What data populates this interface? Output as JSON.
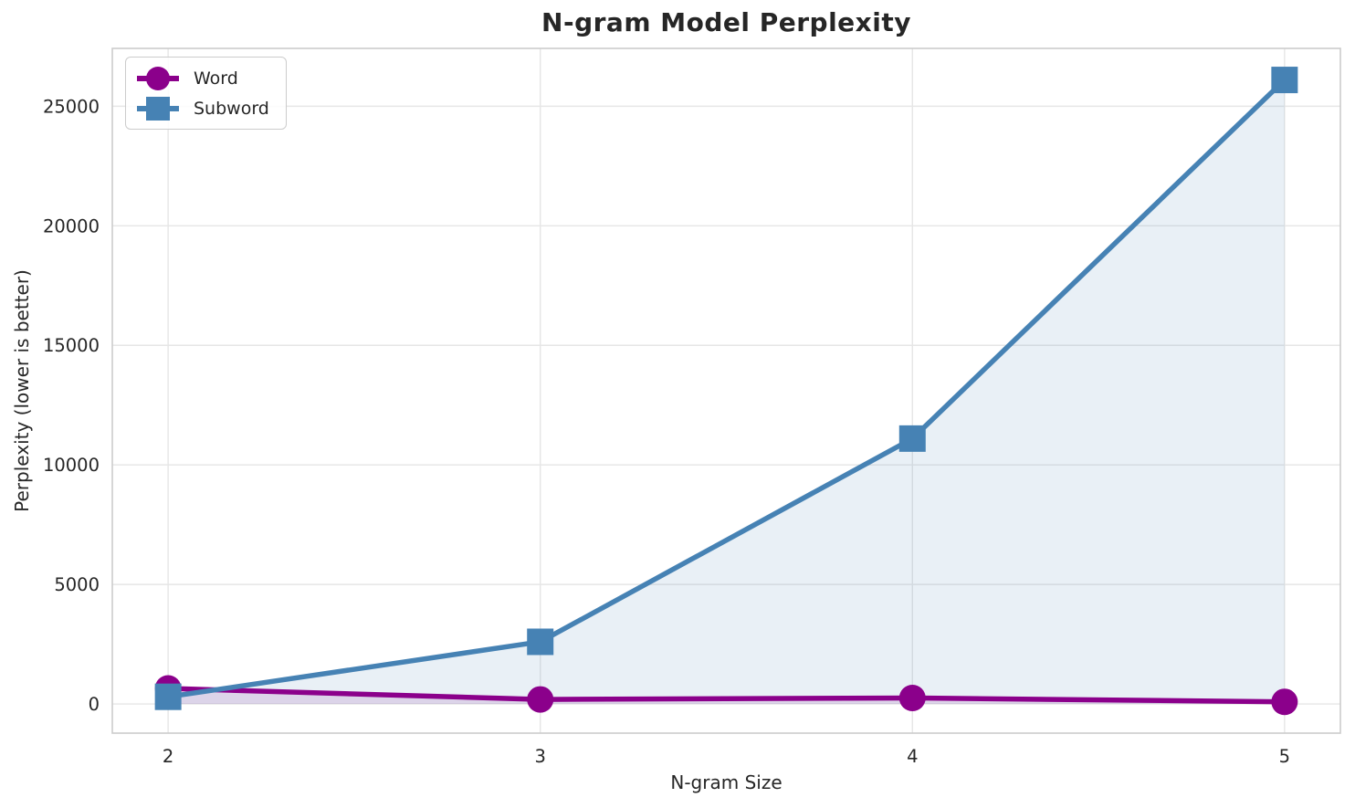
{
  "chart_data": {
    "type": "line",
    "title": "N-gram Model Perplexity",
    "xlabel": "N-gram Size",
    "ylabel": "Perplexity (lower is better)",
    "x": [
      2,
      3,
      4,
      5
    ],
    "series": [
      {
        "name": "Word",
        "values": [
          650,
          190,
          250,
          90
        ],
        "color": "#8B008B",
        "marker": "circle",
        "fill_under": true
      },
      {
        "name": "Subword",
        "values": [
          300,
          2600,
          11100,
          26100
        ],
        "color": "#4682B4",
        "marker": "square",
        "fill_under": true
      }
    ],
    "xlim": [
      1.85,
      5.15
    ],
    "ylim": [
      -1220,
      27420
    ],
    "xticks": {
      "values": [
        2,
        3,
        4,
        5
      ],
      "labels": [
        "2",
        "3",
        "4",
        "5"
      ]
    },
    "yticks": {
      "values": [
        0,
        5000,
        10000,
        15000,
        20000,
        25000
      ],
      "labels": [
        "0",
        "5000",
        "10000",
        "15000",
        "20000",
        "25000"
      ]
    },
    "grid": true,
    "legend_position": "upper left",
    "colors": {
      "text": "#262626",
      "grid": "#e6e6e6",
      "spine": "#cccccc",
      "fill_opacity": 0.12
    }
  }
}
